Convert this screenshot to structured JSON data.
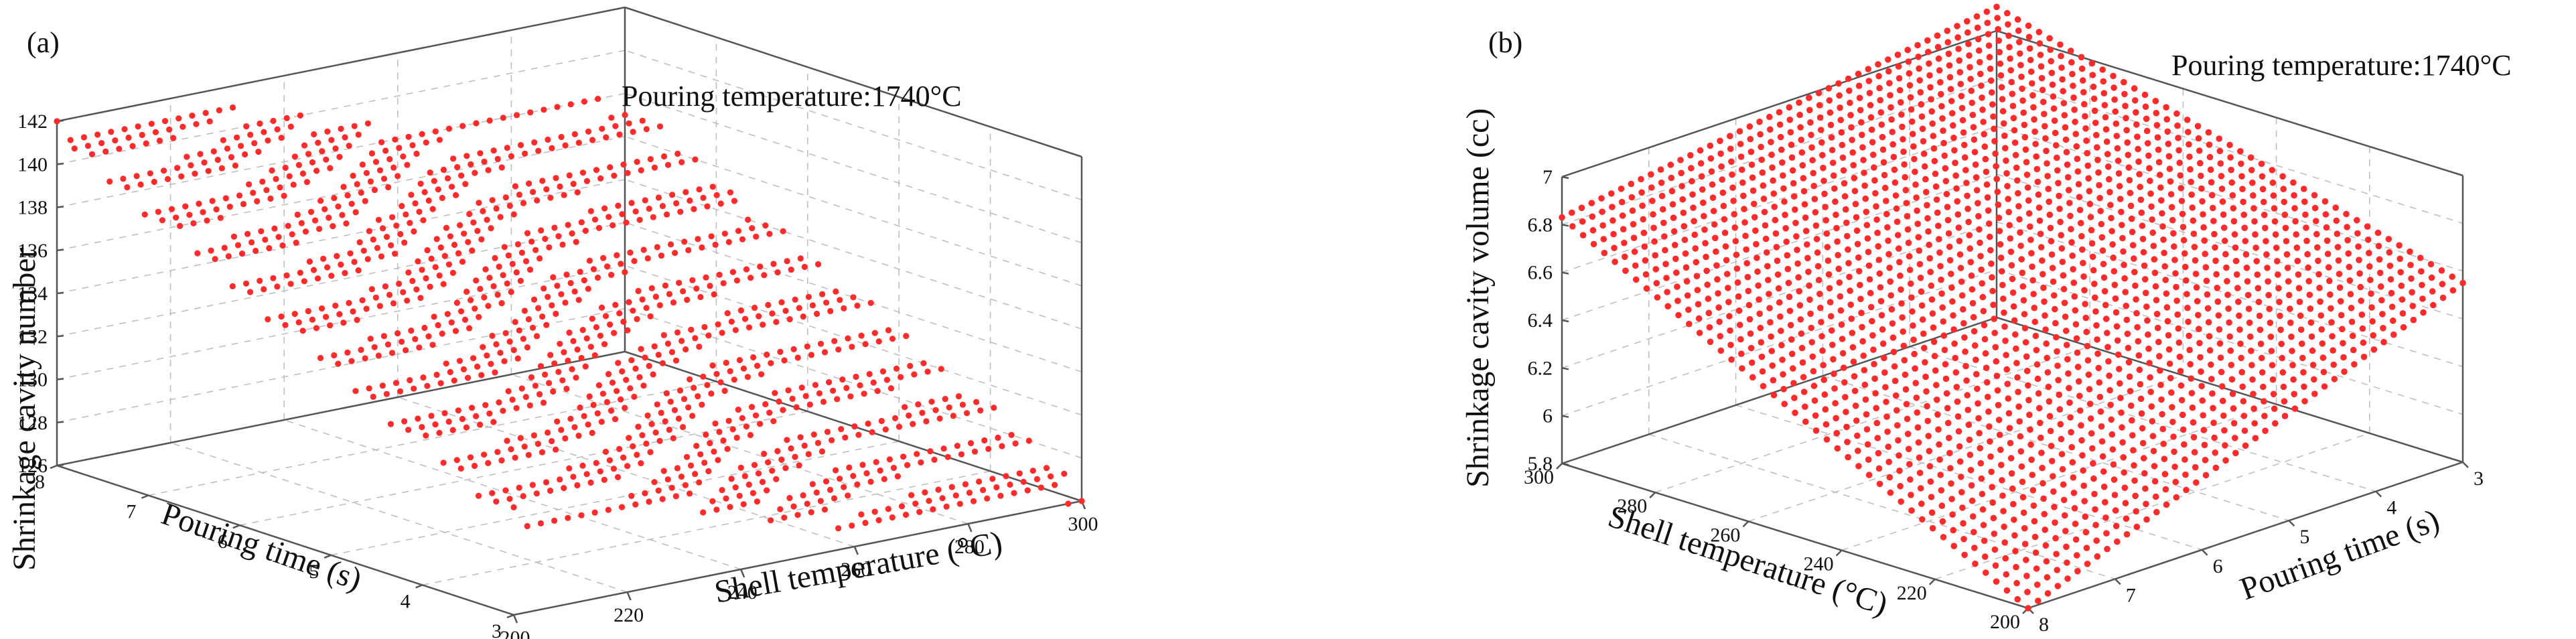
{
  "chart_data": [
    {
      "panel_label": "(a)",
      "type": "scatter",
      "projection": "3d",
      "title": "",
      "annotation": "Pouring temperature:1740°C",
      "xlabel": "Shell temperature (°C)",
      "ylabel": "Pouring time (s)",
      "zlabel": "Shrinkage cavity number",
      "xlim": [
        200,
        300
      ],
      "ylim": [
        3,
        8
      ],
      "zlim": [
        126,
        142
      ],
      "xticks": [
        "200",
        "220",
        "240",
        "260",
        "280",
        "300"
      ],
      "yticks": [
        "3",
        "4",
        "5",
        "6",
        "7",
        "8"
      ],
      "zticks": [
        "126",
        "128",
        "130",
        "132",
        "134",
        "136",
        "138",
        "140",
        "142"
      ],
      "marker_color": "#ff2a2a",
      "grid": true,
      "surface_model": "discrete integer levels; cavity number increases with pouring time and decreases with shell temperature",
      "level_values": [
        126,
        127,
        128,
        129,
        130,
        131,
        132,
        133,
        134,
        135,
        136,
        137,
        138,
        139,
        140,
        141,
        142
      ]
    },
    {
      "panel_label": "(b)",
      "type": "scatter",
      "projection": "3d",
      "title": "",
      "annotation": "Pouring temperature:1740°C",
      "xlabel": "Shell temperature (°C)",
      "ylabel": "Pouring time (s)",
      "zlabel": "Shrinkage cavity volume (cc)",
      "xlim": [
        200,
        300
      ],
      "ylim": [
        3,
        8
      ],
      "zlim": [
        5.8,
        7
      ],
      "xticks": [
        "300",
        "280",
        "260",
        "240",
        "220",
        "200"
      ],
      "yticks": [
        "3",
        "4",
        "5",
        "6",
        "7",
        "8"
      ],
      "zticks": [
        "5.8",
        "6",
        "6.2",
        "6.4",
        "6.6",
        "6.8",
        "7"
      ],
      "marker_color": "#ff2a2a",
      "grid": true,
      "corner_values": [
        {
          "shell_temperature": 200,
          "pouring_time": 8,
          "volume": 5.8
        },
        {
          "shell_temperature": 200,
          "pouring_time": 3,
          "volume": 6.55
        },
        {
          "shell_temperature": 300,
          "pouring_time": 8,
          "volume": 6.83
        },
        {
          "shell_temperature": 300,
          "pouring_time": 3,
          "volume": 7.1
        }
      ]
    }
  ]
}
